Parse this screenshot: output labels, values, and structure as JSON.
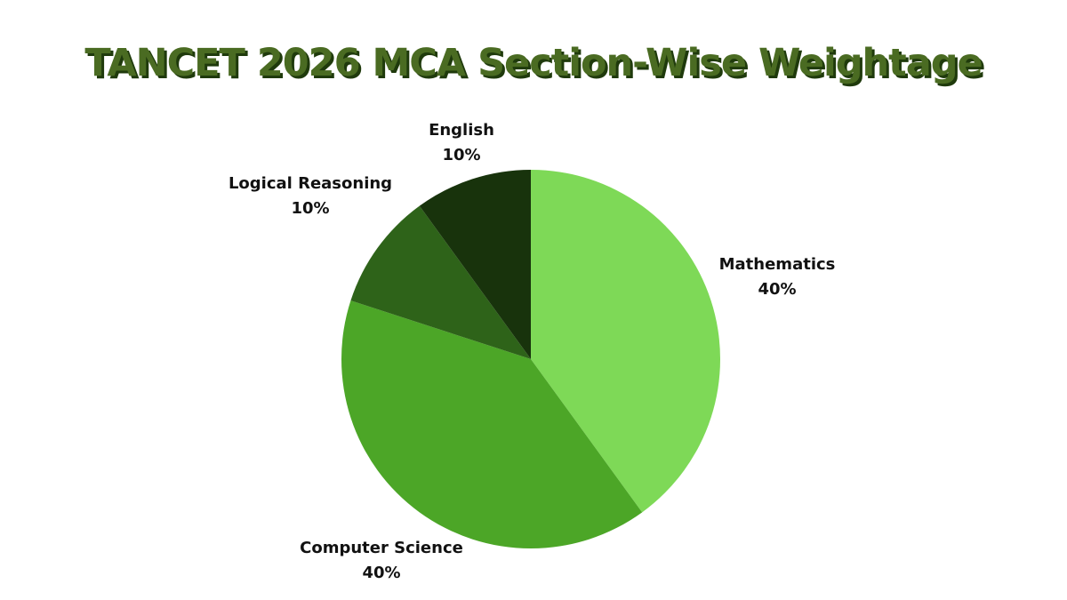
{
  "chart_data": {
    "type": "pie",
    "title": "TANCET 2026 MCA Section-Wise Weightage",
    "slices": [
      {
        "label": "Mathematics",
        "value": 40,
        "value_label": "40%",
        "color": "#7ed957"
      },
      {
        "label": "Computer Science",
        "value": 40,
        "value_label": "40%",
        "color": "#4ca627"
      },
      {
        "label": "Logical Reasoning",
        "value": 10,
        "value_label": "10%",
        "color": "#2e6319"
      },
      {
        "label": "English",
        "value": 10,
        "value_label": "10%",
        "color": "#18330c"
      }
    ],
    "start_angle_deg": 0,
    "direction": "clockwise",
    "legend": "none"
  }
}
